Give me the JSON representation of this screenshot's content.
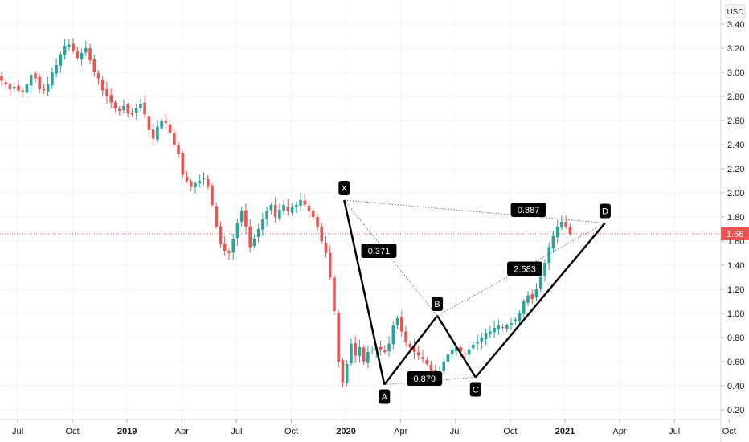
{
  "chart_data": {
    "type": "candlestick",
    "currency": "USD",
    "ylim": [
      0.1,
      3.5
    ],
    "y_ticks": [
      "3.40",
      "3.20",
      "3.00",
      "2.80",
      "2.60",
      "2.40",
      "2.20",
      "2.00",
      "1.80",
      "1.60",
      "1.40",
      "1.20",
      "1.00",
      "0.80",
      "0.60",
      "0.40",
      "0.20"
    ],
    "y_tick_values": [
      3.4,
      3.2,
      3.0,
      2.8,
      2.6,
      2.4,
      2.2,
      2.0,
      1.8,
      1.6,
      1.4,
      1.2,
      1.0,
      0.8,
      0.6,
      0.4,
      0.2
    ],
    "x_ticks": [
      "Jul",
      "Oct",
      "2019",
      "Apr",
      "Jul",
      "Oct",
      "2020",
      "Apr",
      "Jul",
      "Oct",
      "2021",
      "Apr",
      "Jul",
      "Oct"
    ],
    "x_tick_months": [
      0,
      3,
      6,
      9,
      12,
      15,
      18,
      21,
      24,
      27,
      30,
      33,
      36,
      39
    ],
    "x_tick_bold": [
      false,
      false,
      true,
      false,
      false,
      false,
      true,
      false,
      false,
      false,
      true,
      false,
      false,
      false
    ],
    "last_price": {
      "value": 1.66,
      "label": "1.66",
      "color": "#ef5350"
    },
    "colors": {
      "up": "#26a69a",
      "down": "#ef5350",
      "pattern": "#000000"
    },
    "weekly_close": [
      2.93,
      2.9,
      2.86,
      2.88,
      2.85,
      2.84,
      2.9,
      2.98,
      2.95,
      2.86,
      2.85,
      2.9,
      3.0,
      3.06,
      3.15,
      3.22,
      3.23,
      3.18,
      3.12,
      3.16,
      3.2,
      3.1,
      3.0,
      2.95,
      2.85,
      2.8,
      2.75,
      2.7,
      2.68,
      2.72,
      2.66,
      2.65,
      2.7,
      2.74,
      2.65,
      2.52,
      2.45,
      2.55,
      2.6,
      2.58,
      2.5,
      2.4,
      2.32,
      2.15,
      2.1,
      2.05,
      2.08,
      2.1,
      2.12,
      2.05,
      1.9,
      1.72,
      1.58,
      1.52,
      1.5,
      1.62,
      1.75,
      1.85,
      1.72,
      1.55,
      1.62,
      1.7,
      1.78,
      1.85,
      1.9,
      1.8,
      1.86,
      1.9,
      1.85,
      1.88,
      1.9,
      1.94,
      1.9,
      1.85,
      1.8,
      1.72,
      1.6,
      1.5,
      1.3,
      1.02,
      0.6,
      0.43,
      0.58,
      0.75,
      0.65,
      0.72,
      0.6,
      0.68,
      0.7,
      0.72,
      0.7,
      0.68,
      0.75,
      0.9,
      0.96,
      0.85,
      0.76,
      0.72,
      0.68,
      0.65,
      0.62,
      0.58,
      0.52,
      0.48,
      0.52,
      0.6,
      0.66,
      0.7,
      0.72,
      0.68,
      0.66,
      0.7,
      0.74,
      0.76,
      0.8,
      0.84,
      0.85,
      0.88,
      0.9,
      0.88,
      0.9,
      0.92,
      0.95,
      1.0,
      1.1,
      1.15,
      1.12,
      1.2,
      1.3,
      1.42,
      1.55,
      1.64,
      1.72,
      1.76,
      1.72,
      1.66
    ],
    "harmonic_pattern": {
      "points": [
        {
          "label": "X",
          "month": 17.9,
          "value": 1.94
        },
        {
          "label": "A",
          "month": 20.1,
          "value": 0.41
        },
        {
          "label": "B",
          "month": 23.0,
          "value": 0.98
        },
        {
          "label": "C",
          "month": 25.1,
          "value": 0.47
        },
        {
          "label": "D",
          "month": 32.2,
          "value": 1.75
        }
      ],
      "ratios": [
        {
          "label": "0.887",
          "month": 28.0,
          "value": 1.86
        },
        {
          "label": "0.371",
          "month": 19.8,
          "value": 1.52
        },
        {
          "label": "2.583",
          "month": 27.8,
          "value": 1.37
        },
        {
          "label": "0.879",
          "month": 22.3,
          "value": 0.46
        }
      ]
    }
  }
}
